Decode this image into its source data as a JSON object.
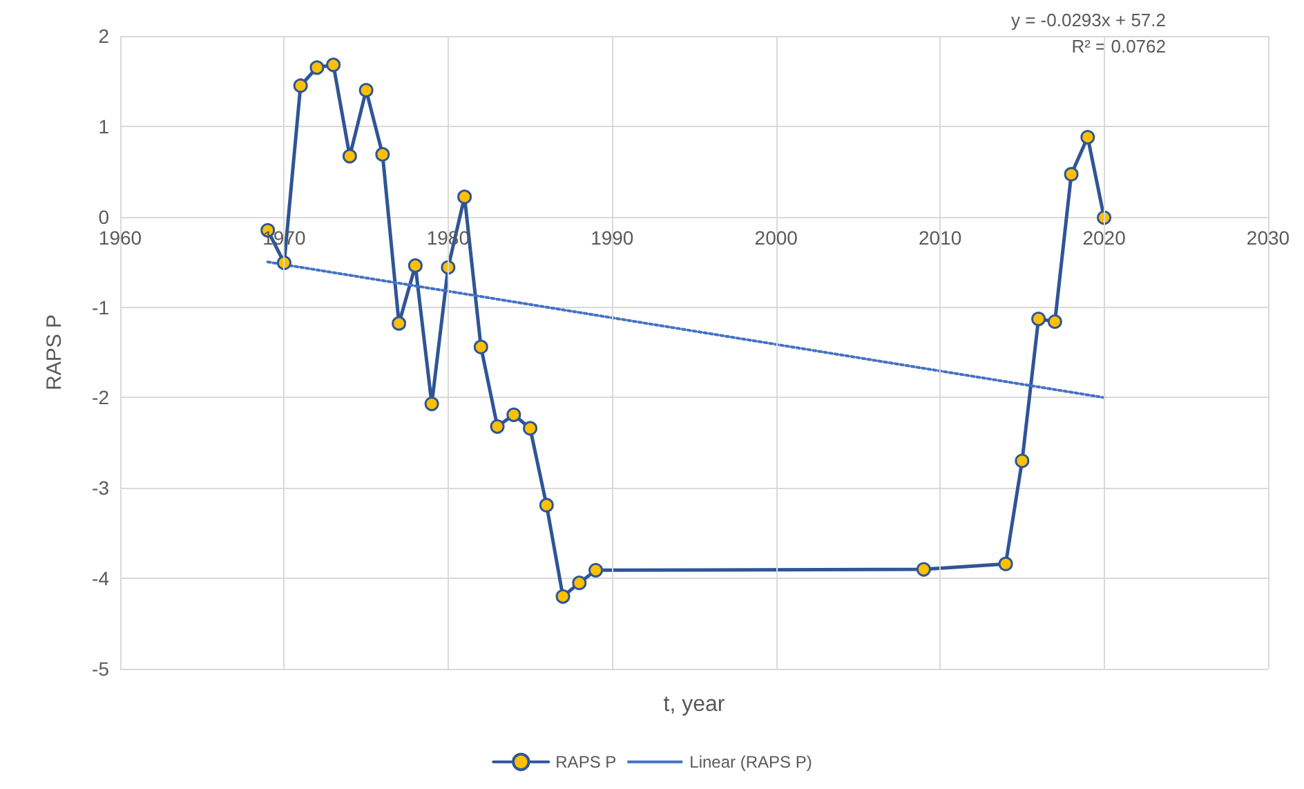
{
  "chart_data": {
    "type": "line",
    "xlabel": "t, year",
    "ylabel": "RAPS P",
    "xlim": [
      1960,
      2030
    ],
    "xticks": [
      1960,
      1970,
      1980,
      1990,
      2000,
      2010,
      2020,
      2030
    ],
    "ylim": [
      -5,
      2
    ],
    "yticks": [
      -5,
      -4,
      -3,
      -2,
      -1,
      0,
      1,
      2
    ],
    "grid": true,
    "legend": "bottom",
    "marker": "circle",
    "annotations": [
      "y = -0.0293x + 57.2",
      "R² = 0.0762"
    ],
    "series": [
      {
        "name": "RAPS P",
        "color": "#2f5597",
        "marker": "circle",
        "line_style": "solid",
        "x": [
          1969,
          1970,
          1971,
          1972,
          1973,
          1974,
          1975,
          1976,
          1977,
          1978,
          1979,
          1980,
          1981,
          1982,
          1983,
          1984,
          1985,
          1986,
          1987,
          1988,
          1989,
          2009,
          2014,
          2015,
          2016,
          2017,
          2018,
          2019,
          2020
        ],
        "values": [
          -0.15,
          -0.51,
          1.45,
          1.65,
          1.68,
          0.67,
          1.4,
          0.69,
          -1.18,
          -0.54,
          -2.07,
          -0.56,
          0.22,
          -1.44,
          -2.32,
          -2.19,
          -2.34,
          -3.19,
          -4.2,
          -4.05,
          -3.91,
          -3.9,
          -3.84,
          -2.7,
          -1.13,
          -1.16,
          0.47,
          0.88,
          -0.01
        ]
      },
      {
        "name": "Linear (RAPS P)",
        "color": "#4472c4",
        "marker": "none",
        "line_style": "dotted",
        "x": [
          1969,
          2020
        ],
        "values": [
          -0.5,
          -2.0
        ]
      }
    ]
  }
}
